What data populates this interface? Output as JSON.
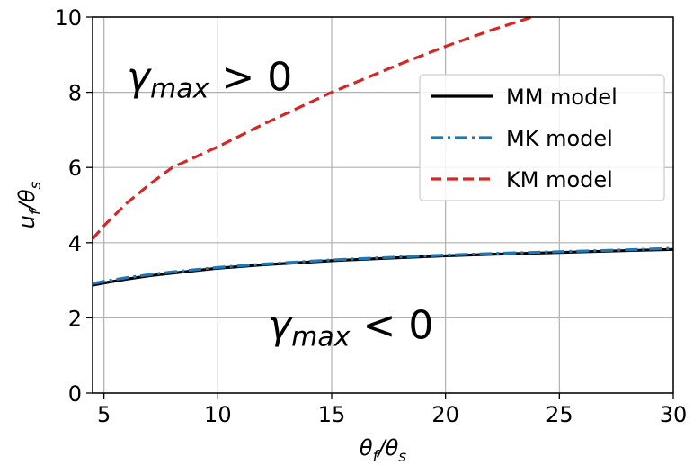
{
  "chart_data": {
    "type": "line",
    "title": "",
    "xlabel": {
      "main": "θ",
      "sub1": "f",
      "slash": "/θ",
      "sub2": "s"
    },
    "ylabel": {
      "main": "u",
      "sub1": "f",
      "slash": "/θ",
      "sub2": "s"
    },
    "xlim": [
      4.5,
      30
    ],
    "ylim": [
      0,
      10
    ],
    "xticks": [
      5,
      10,
      15,
      20,
      25,
      30
    ],
    "yticks": [
      0,
      2,
      4,
      6,
      8,
      10
    ],
    "grid": true,
    "legend_position": "upper-right",
    "series": [
      {
        "name": "MM model",
        "color": "#000000",
        "style": "solid",
        "x": [
          4.5,
          5,
          6,
          7,
          8,
          10,
          12,
          15,
          18,
          20,
          22,
          25,
          28,
          30
        ],
        "y": [
          2.87,
          2.93,
          3.03,
          3.12,
          3.19,
          3.32,
          3.41,
          3.52,
          3.6,
          3.65,
          3.69,
          3.74,
          3.79,
          3.82
        ]
      },
      {
        "name": "MK model",
        "color": "#1f77b4",
        "style": "dashdot",
        "x": [
          4.5,
          5,
          6,
          7,
          8,
          10,
          12,
          15,
          18,
          20,
          22,
          25,
          28,
          30
        ],
        "y": [
          2.91,
          2.97,
          3.07,
          3.15,
          3.22,
          3.34,
          3.43,
          3.54,
          3.62,
          3.67,
          3.71,
          3.76,
          3.81,
          3.85
        ]
      },
      {
        "name": "KM model",
        "color": "#d62728",
        "style": "dashed",
        "x": [
          4.5,
          5,
          6,
          7,
          8,
          10,
          12,
          15,
          18,
          20,
          22,
          23.8
        ],
        "y": [
          4.1,
          4.45,
          5.05,
          5.55,
          6.0,
          6.55,
          7.15,
          8.0,
          8.75,
          9.22,
          9.65,
          10.0
        ]
      }
    ],
    "annotations": [
      {
        "name": "gamma-positive",
        "symbol": "γ",
        "sub": "max",
        "rest": " > 0",
        "x": 6,
        "y": 8.05
      },
      {
        "name": "gamma-negative",
        "symbol": "γ",
        "sub": "max",
        "rest": " < 0",
        "x": 12.2,
        "y": 1.45
      }
    ]
  }
}
